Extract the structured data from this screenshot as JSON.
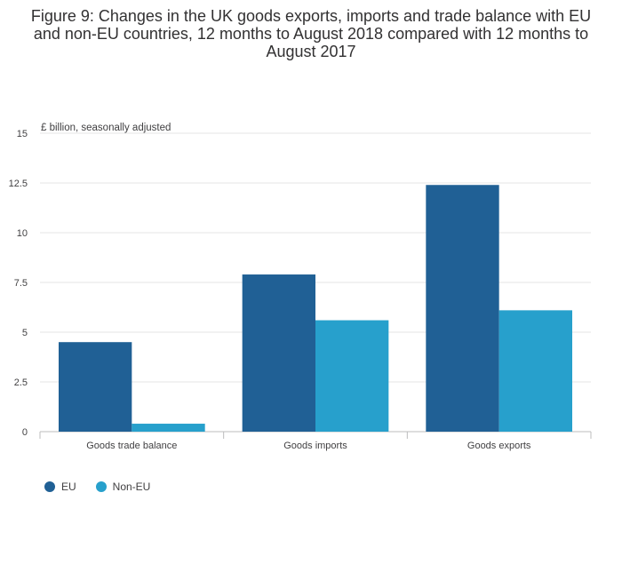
{
  "chart_data": {
    "type": "bar",
    "title": "Figure 9: Changes in the UK goods exports, imports and trade balance with EU and non-EU countries, 12 months to August 2018 compared with 12 months to August 2017",
    "ylabel": "£ billion, seasonally adjusted",
    "xlabel": "",
    "categories": [
      "Goods trade balance",
      "Goods imports",
      "Goods exports"
    ],
    "series": [
      {
        "name": "EU",
        "values": [
          4.5,
          7.9,
          12.4
        ],
        "color": "#206095"
      },
      {
        "name": "Non-EU",
        "values": [
          0.4,
          5.6,
          6.1
        ],
        "color": "#27a0cc"
      }
    ],
    "ylim": [
      0,
      15
    ],
    "yticks": [
      "0",
      "2.5",
      "5",
      "7.5",
      "10",
      "12.5",
      "15"
    ],
    "grid": true,
    "legend_position": "bottom-left"
  }
}
